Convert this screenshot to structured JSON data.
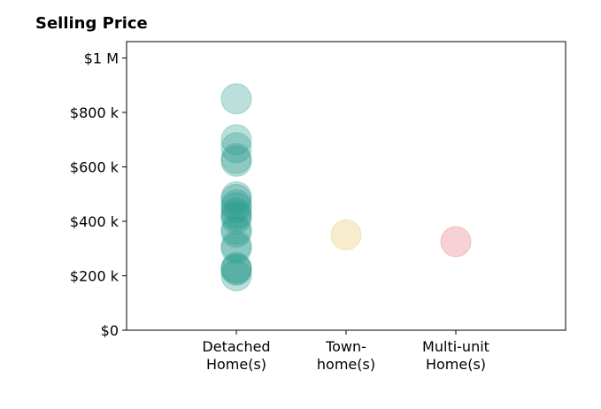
{
  "chart_data": {
    "type": "scatter",
    "title": "Selling Price",
    "xlabel": "",
    "ylabel": "",
    "categories": [
      "Detached Home(s)",
      "Town-home(s)",
      "Multi-unit Home(s)"
    ],
    "category_labels": [
      [
        "Detached",
        "Home(s)"
      ],
      [
        "Town-",
        "home(s)"
      ],
      [
        "Multi-unit",
        "Home(s)"
      ]
    ],
    "ylim": [
      0,
      1060000
    ],
    "yticks": [
      0,
      200000,
      400000,
      600000,
      800000,
      1000000
    ],
    "ytick_labels": [
      "$0",
      "$200 k",
      "$400 k",
      "$600 k",
      "$800 k",
      "$1 M"
    ],
    "grid": false,
    "series": [
      {
        "category": "Detached Home(s)",
        "color": "#2a9d8f",
        "values": [
          850000,
          700000,
          670000,
          630000,
          620000,
          490000,
          480000,
          460000,
          450000,
          430000,
          420000,
          410000,
          370000,
          360000,
          310000,
          300000,
          230000,
          225000,
          220000,
          200000
        ]
      },
      {
        "category": "Town-home(s)",
        "color": "#e9c46a",
        "values": [
          350000
        ]
      },
      {
        "category": "Multi-unit Home(s)",
        "color": "#e76f7f",
        "values": [
          325000
        ]
      }
    ]
  }
}
